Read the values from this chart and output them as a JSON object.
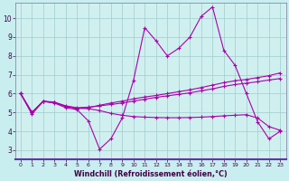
{
  "xlabel": "Windchill (Refroidissement éolien,°C)",
  "bg_color": "#c8eef0",
  "plot_bg_color": "#d0f0f0",
  "line_color": "#aa00aa",
  "grid_color": "#a0cccc",
  "axis_border_color": "#8888aa",
  "xlim": [
    -0.5,
    23.5
  ],
  "ylim": [
    2.5,
    10.8
  ],
  "yticks": [
    3,
    4,
    5,
    6,
    7,
    8,
    9,
    10
  ],
  "xticks": [
    0,
    1,
    2,
    3,
    4,
    5,
    6,
    7,
    8,
    9,
    10,
    11,
    12,
    13,
    14,
    15,
    16,
    17,
    18,
    19,
    20,
    21,
    22,
    23
  ],
  "series": [
    [
      6.0,
      4.9,
      5.6,
      5.5,
      5.25,
      5.15,
      4.55,
      3.05,
      3.6,
      4.7,
      6.7,
      9.5,
      8.8,
      8.0,
      8.4,
      9.0,
      10.1,
      10.6,
      8.3,
      7.5,
      6.0,
      4.5,
      3.6,
      4.0
    ],
    [
      6.0,
      5.0,
      5.6,
      5.55,
      5.35,
      5.25,
      5.28,
      5.35,
      5.42,
      5.5,
      5.6,
      5.7,
      5.8,
      5.88,
      5.96,
      6.04,
      6.15,
      6.25,
      6.38,
      6.48,
      6.55,
      6.63,
      6.72,
      6.8
    ],
    [
      6.0,
      5.0,
      5.58,
      5.52,
      5.32,
      5.22,
      5.2,
      5.1,
      4.95,
      4.85,
      4.78,
      4.75,
      4.73,
      4.72,
      4.72,
      4.73,
      4.75,
      4.78,
      4.82,
      4.85,
      4.88,
      4.7,
      4.25,
      4.05
    ],
    [
      6.0,
      5.0,
      5.58,
      5.52,
      5.32,
      5.22,
      5.25,
      5.38,
      5.5,
      5.6,
      5.72,
      5.82,
      5.9,
      6.0,
      6.1,
      6.2,
      6.32,
      6.45,
      6.58,
      6.68,
      6.75,
      6.85,
      6.95,
      7.1
    ]
  ]
}
